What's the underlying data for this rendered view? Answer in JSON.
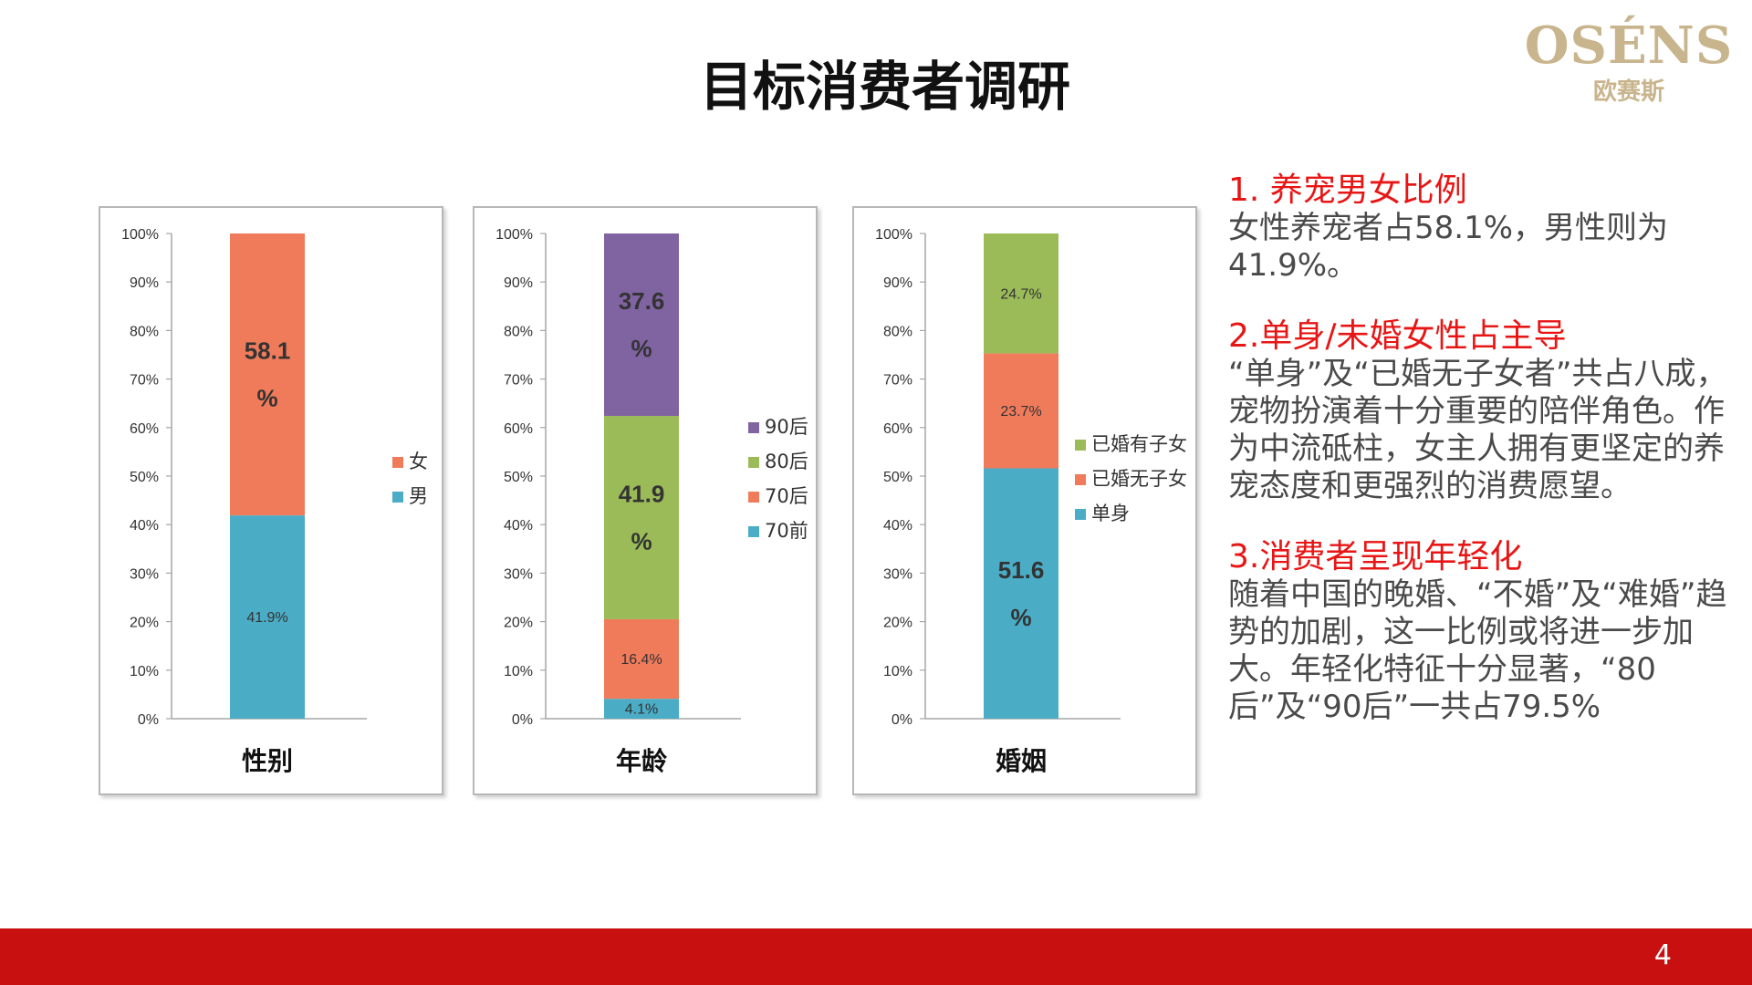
{
  "slide": {
    "title": "目标消费者调研",
    "logo": {
      "brand": "OSÉNS",
      "brand_cn": "欧赛斯"
    },
    "page_number": "4"
  },
  "notes": [
    {
      "title": "1. 养宠男女比例",
      "body": "女性养宠者占58.1%，男性则为41.9%。"
    },
    {
      "title": "2.单身/未婚女性占主导",
      "body": "“单身”及“已婚无子女者”共占八成，宠物扮演着十分重要的陪伴角色。作为中流砥柱，女主人拥有更坚定的养宠态度和更强烈的消费愿望。"
    },
    {
      "title": "3.消费者呈现年轻化",
      "body": "随着中国的晚婚、“不婚”及“难婚”趋势的加剧，这一比例或将进一步加大。年轻化特征十分显著，“80后”及“90后”一共占79.5%"
    }
  ],
  "chart_data": [
    {
      "type": "bar",
      "stacked": true,
      "categories": [
        "性别"
      ],
      "xlabel": "性别",
      "ylim": [
        0,
        100
      ],
      "y_ticks": [
        "0%",
        "10%",
        "20%",
        "30%",
        "40%",
        "50%",
        "60%",
        "70%",
        "80%",
        "90%",
        "100%"
      ],
      "series": [
        {
          "name": "男",
          "values": [
            41.9
          ],
          "label": "41.9%",
          "color": "#4bacc6"
        },
        {
          "name": "女",
          "values": [
            58.1
          ],
          "label": "58.1\n%",
          "color": "#f07b5b"
        }
      ],
      "legend_position": "right"
    },
    {
      "type": "bar",
      "stacked": true,
      "categories": [
        "年龄"
      ],
      "xlabel": "年龄",
      "ylim": [
        0,
        100
      ],
      "y_ticks": [
        "0%",
        "10%",
        "20%",
        "30%",
        "40%",
        "50%",
        "60%",
        "70%",
        "80%",
        "90%",
        "100%"
      ],
      "series": [
        {
          "name": "70前",
          "values": [
            4.1
          ],
          "label": "4.1%",
          "color": "#4bacc6"
        },
        {
          "name": "70后",
          "values": [
            16.4
          ],
          "label": "16.4%",
          "color": "#f07b5b"
        },
        {
          "name": "80后",
          "values": [
            41.9
          ],
          "label": "41.9\n%",
          "color": "#9bbb59"
        },
        {
          "name": "90后",
          "values": [
            37.6
          ],
          "label": "37.6\n%",
          "color": "#8064a2"
        }
      ],
      "legend_position": "right"
    },
    {
      "type": "bar",
      "stacked": true,
      "categories": [
        "婚姻"
      ],
      "xlabel": "婚姻",
      "ylim": [
        0,
        100
      ],
      "y_ticks": [
        "0%",
        "10%",
        "20%",
        "30%",
        "40%",
        "50%",
        "60%",
        "70%",
        "80%",
        "90%",
        "100%"
      ],
      "series": [
        {
          "name": "单身",
          "values": [
            51.6
          ],
          "label": "51.6\n%",
          "color": "#4bacc6"
        },
        {
          "name": "已婚无子女",
          "values": [
            23.7
          ],
          "label": "23.7%",
          "color": "#f07b5b"
        },
        {
          "name": "已婚有子女",
          "values": [
            24.7
          ],
          "label": "24.7%",
          "color": "#9bbb59"
        }
      ],
      "legend_position": "right"
    }
  ]
}
